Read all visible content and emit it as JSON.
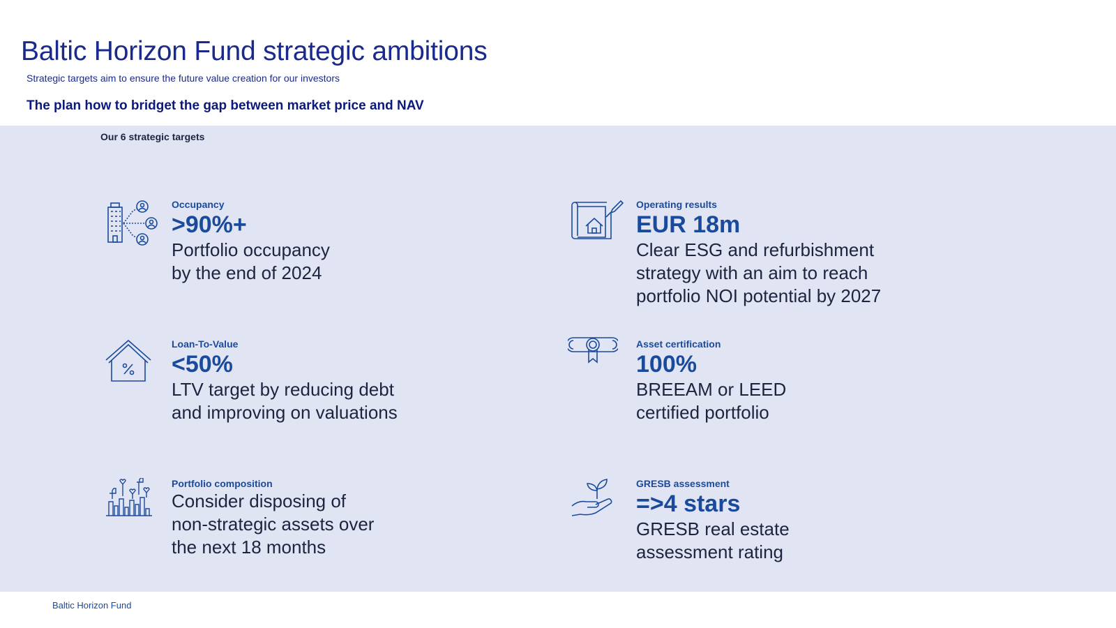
{
  "header": {
    "title": "Baltic Horizon Fund strategic ambitions",
    "subtitle": "Strategic targets aim to ensure the future value creation for our investors",
    "plan_heading": "The plan how to bridget the gap between market price and NAV"
  },
  "panel": {
    "label": "Our 6 strategic targets"
  },
  "targets": {
    "occupancy": {
      "icon": "building-people-icon",
      "label": "Occupancy",
      "value": ">90%+",
      "desc": [
        "Portfolio occupancy",
        "by the end of 2024"
      ]
    },
    "operating": {
      "icon": "blueprint-house-icon",
      "label": "Operating results",
      "value": "EUR 18m",
      "desc": [
        "Clear ESG and refurbishment",
        "strategy with an aim to reach",
        "portfolio NOI potential by 2027"
      ]
    },
    "ltv": {
      "icon": "house-percent-icon",
      "label": "Loan-To-Value",
      "value": "<50%",
      "desc": [
        "LTV target by reducing debt",
        "and improving on valuations"
      ]
    },
    "certification": {
      "icon": "certificate-icon",
      "label": "Asset certification",
      "value": "100%",
      "desc": [
        "BREEAM or LEED",
        "certified portfolio"
      ]
    },
    "composition": {
      "icon": "city-likes-icon",
      "label": "Portfolio composition",
      "desc": [
        "Consider disposing of",
        "non-strategic assets over",
        "the next 18 months"
      ]
    },
    "gresb": {
      "icon": "hand-plant-icon",
      "label": "GRESB assessment",
      "value": "=>4 stars",
      "desc": [
        "GRESB real estate",
        "assessment rating"
      ]
    }
  },
  "footer": {
    "text": "Baltic Horizon Fund"
  },
  "colors": {
    "title": "#1a2a8c",
    "accent": "#1a4a9c",
    "panel_bg": "#e1e5f3",
    "body_text": "#1c2440"
  }
}
